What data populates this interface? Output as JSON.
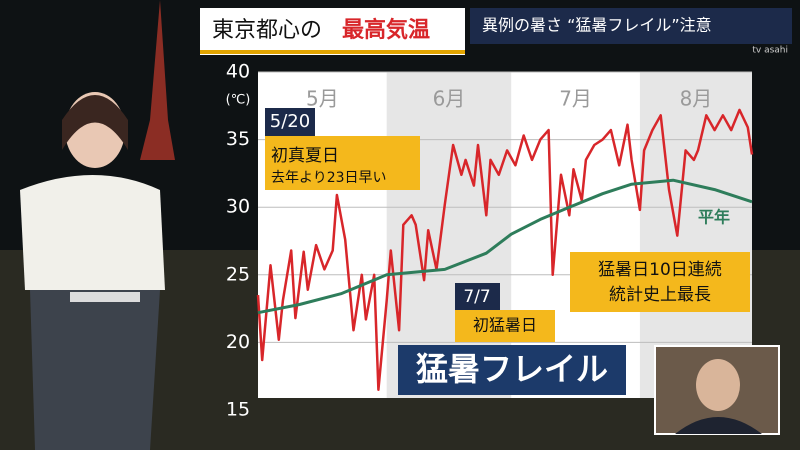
{
  "header": {
    "title_main": "東京都心の",
    "title_accent": "最高気温",
    "topic": "異例の暑さ “猛暑フレイル”注意",
    "channel": "tv asahi"
  },
  "chart_data": {
    "type": "line",
    "unit_label": "(℃)",
    "xlim": [
      0,
      119
    ],
    "xticks": [
      {
        "value": 0,
        "label": "5月"
      },
      {
        "value": 31,
        "label": "6月"
      },
      {
        "value": 61,
        "label": "7月"
      },
      {
        "value": 92,
        "label": "8月"
      }
    ],
    "ylim": [
      15,
      40
    ],
    "yticks": [
      15,
      20,
      25,
      30,
      35,
      40
    ],
    "grid": true,
    "series": [
      {
        "name": "最高気温",
        "color": "#d8262a",
        "x": [
          0,
          1,
          3,
          5,
          6,
          8,
          9,
          11,
          12,
          14,
          16,
          18,
          19,
          21,
          23,
          25,
          26,
          28,
          29,
          31,
          32,
          34,
          35,
          37,
          38,
          40,
          41,
          43,
          45,
          47,
          49,
          50,
          52,
          53,
          55,
          56,
          58,
          60,
          62,
          64,
          66,
          68,
          70,
          71,
          73,
          75,
          76,
          78,
          79,
          81,
          83,
          85,
          87,
          89,
          90,
          92,
          93,
          95,
          97,
          99,
          101,
          103,
          105,
          106,
          108,
          110,
          112,
          114,
          116,
          118,
          119
        ],
        "values": [
          23.5,
          18.7,
          25.7,
          20.2,
          23.1,
          26.8,
          21.8,
          26.7,
          23.9,
          27.2,
          25.4,
          26.8,
          30.9,
          27.6,
          20.9,
          25.0,
          21.7,
          25.0,
          16.5,
          23.1,
          26.8,
          20.9,
          28.7,
          29.4,
          28.7,
          24.6,
          28.3,
          25.4,
          30.2,
          34.6,
          32.4,
          33.5,
          31.6,
          34.6,
          29.4,
          33.5,
          32.4,
          34.2,
          33.1,
          35.3,
          33.5,
          35.0,
          35.7,
          25.0,
          32.4,
          29.4,
          32.8,
          30.5,
          33.5,
          34.6,
          35.0,
          35.7,
          33.1,
          36.1,
          33.5,
          29.8,
          34.2,
          35.7,
          36.8,
          31.3,
          27.9,
          34.2,
          33.5,
          34.2,
          36.8,
          35.7,
          36.8,
          35.7,
          37.2,
          35.9,
          33.9
        ]
      },
      {
        "name": "平年",
        "color": "#2e7d5b",
        "x": [
          0,
          10,
          20,
          31,
          45,
          55,
          61,
          68,
          75,
          83,
          90,
          100,
          110,
          119
        ],
        "values": [
          22.2,
          22.8,
          23.6,
          25.0,
          25.4,
          26.6,
          28.0,
          29.1,
          30.0,
          31.0,
          31.7,
          32.0,
          31.3,
          30.4
        ]
      }
    ],
    "annotations": {
      "date1": "5/20",
      "event1": "初真夏日",
      "note1": "去年より23日早い",
      "date2": "7/7",
      "event2": "初猛暑日",
      "record1": "猛暑日10日連続",
      "record2": "統計史上最長",
      "banner": "猛暑フレイル"
    }
  }
}
